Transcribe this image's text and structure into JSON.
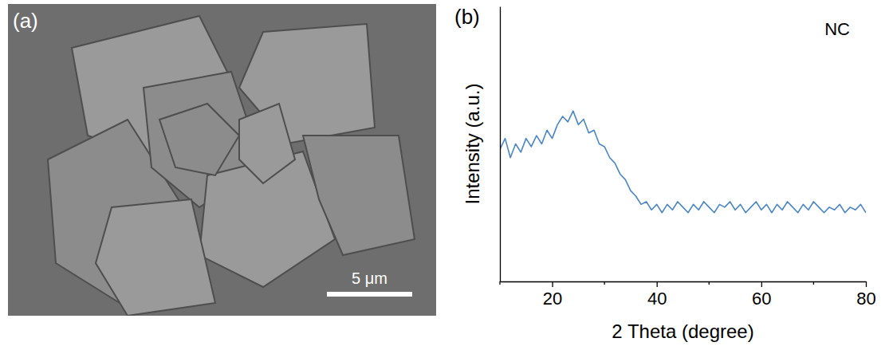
{
  "panel_a": {
    "label": "(a)",
    "scale_bar": "5 μm"
  },
  "chart_data": {
    "type": "line",
    "panel_label": "(b)",
    "annotation": "NC",
    "x_label": "2 Theta (degree)",
    "y_label": "Intensity (a.u.)",
    "color": "#4a86c8",
    "tick_labels": "x",
    "grid": false,
    "xlim": [
      10,
      80
    ],
    "ylim": [
      0,
      100
    ],
    "xticks": [
      20,
      40,
      60,
      80
    ],
    "x_minor_ticks": [
      10,
      30,
      50,
      70
    ],
    "x": [
      10,
      11,
      12,
      13,
      14,
      15,
      16,
      17,
      18,
      19,
      20,
      21,
      22,
      23,
      24,
      25,
      26,
      27,
      28,
      29,
      30,
      31,
      32,
      33,
      34,
      35,
      36,
      37,
      38,
      39,
      40,
      41,
      42,
      43,
      44,
      45,
      46,
      47,
      48,
      49,
      50,
      51,
      52,
      53,
      54,
      55,
      56,
      57,
      58,
      59,
      60,
      61,
      62,
      63,
      64,
      65,
      66,
      67,
      68,
      69,
      70,
      71,
      72,
      73,
      74,
      75,
      76,
      77,
      78,
      79,
      80
    ],
    "values": [
      48,
      52,
      45,
      50,
      47,
      52,
      49,
      53,
      50,
      55,
      52,
      57,
      60,
      58,
      62,
      57,
      59,
      54,
      55,
      50,
      49,
      45,
      43,
      39,
      37,
      33,
      31,
      28,
      29,
      26,
      28,
      25,
      28,
      26,
      29,
      27,
      25,
      28,
      26,
      29,
      27,
      25,
      28,
      27,
      29,
      26,
      28,
      25,
      27,
      29,
      26,
      28,
      25,
      28,
      26,
      29,
      27,
      25,
      28,
      26,
      29,
      27,
      25,
      27,
      26,
      28,
      25,
      27,
      26,
      28,
      25
    ]
  }
}
